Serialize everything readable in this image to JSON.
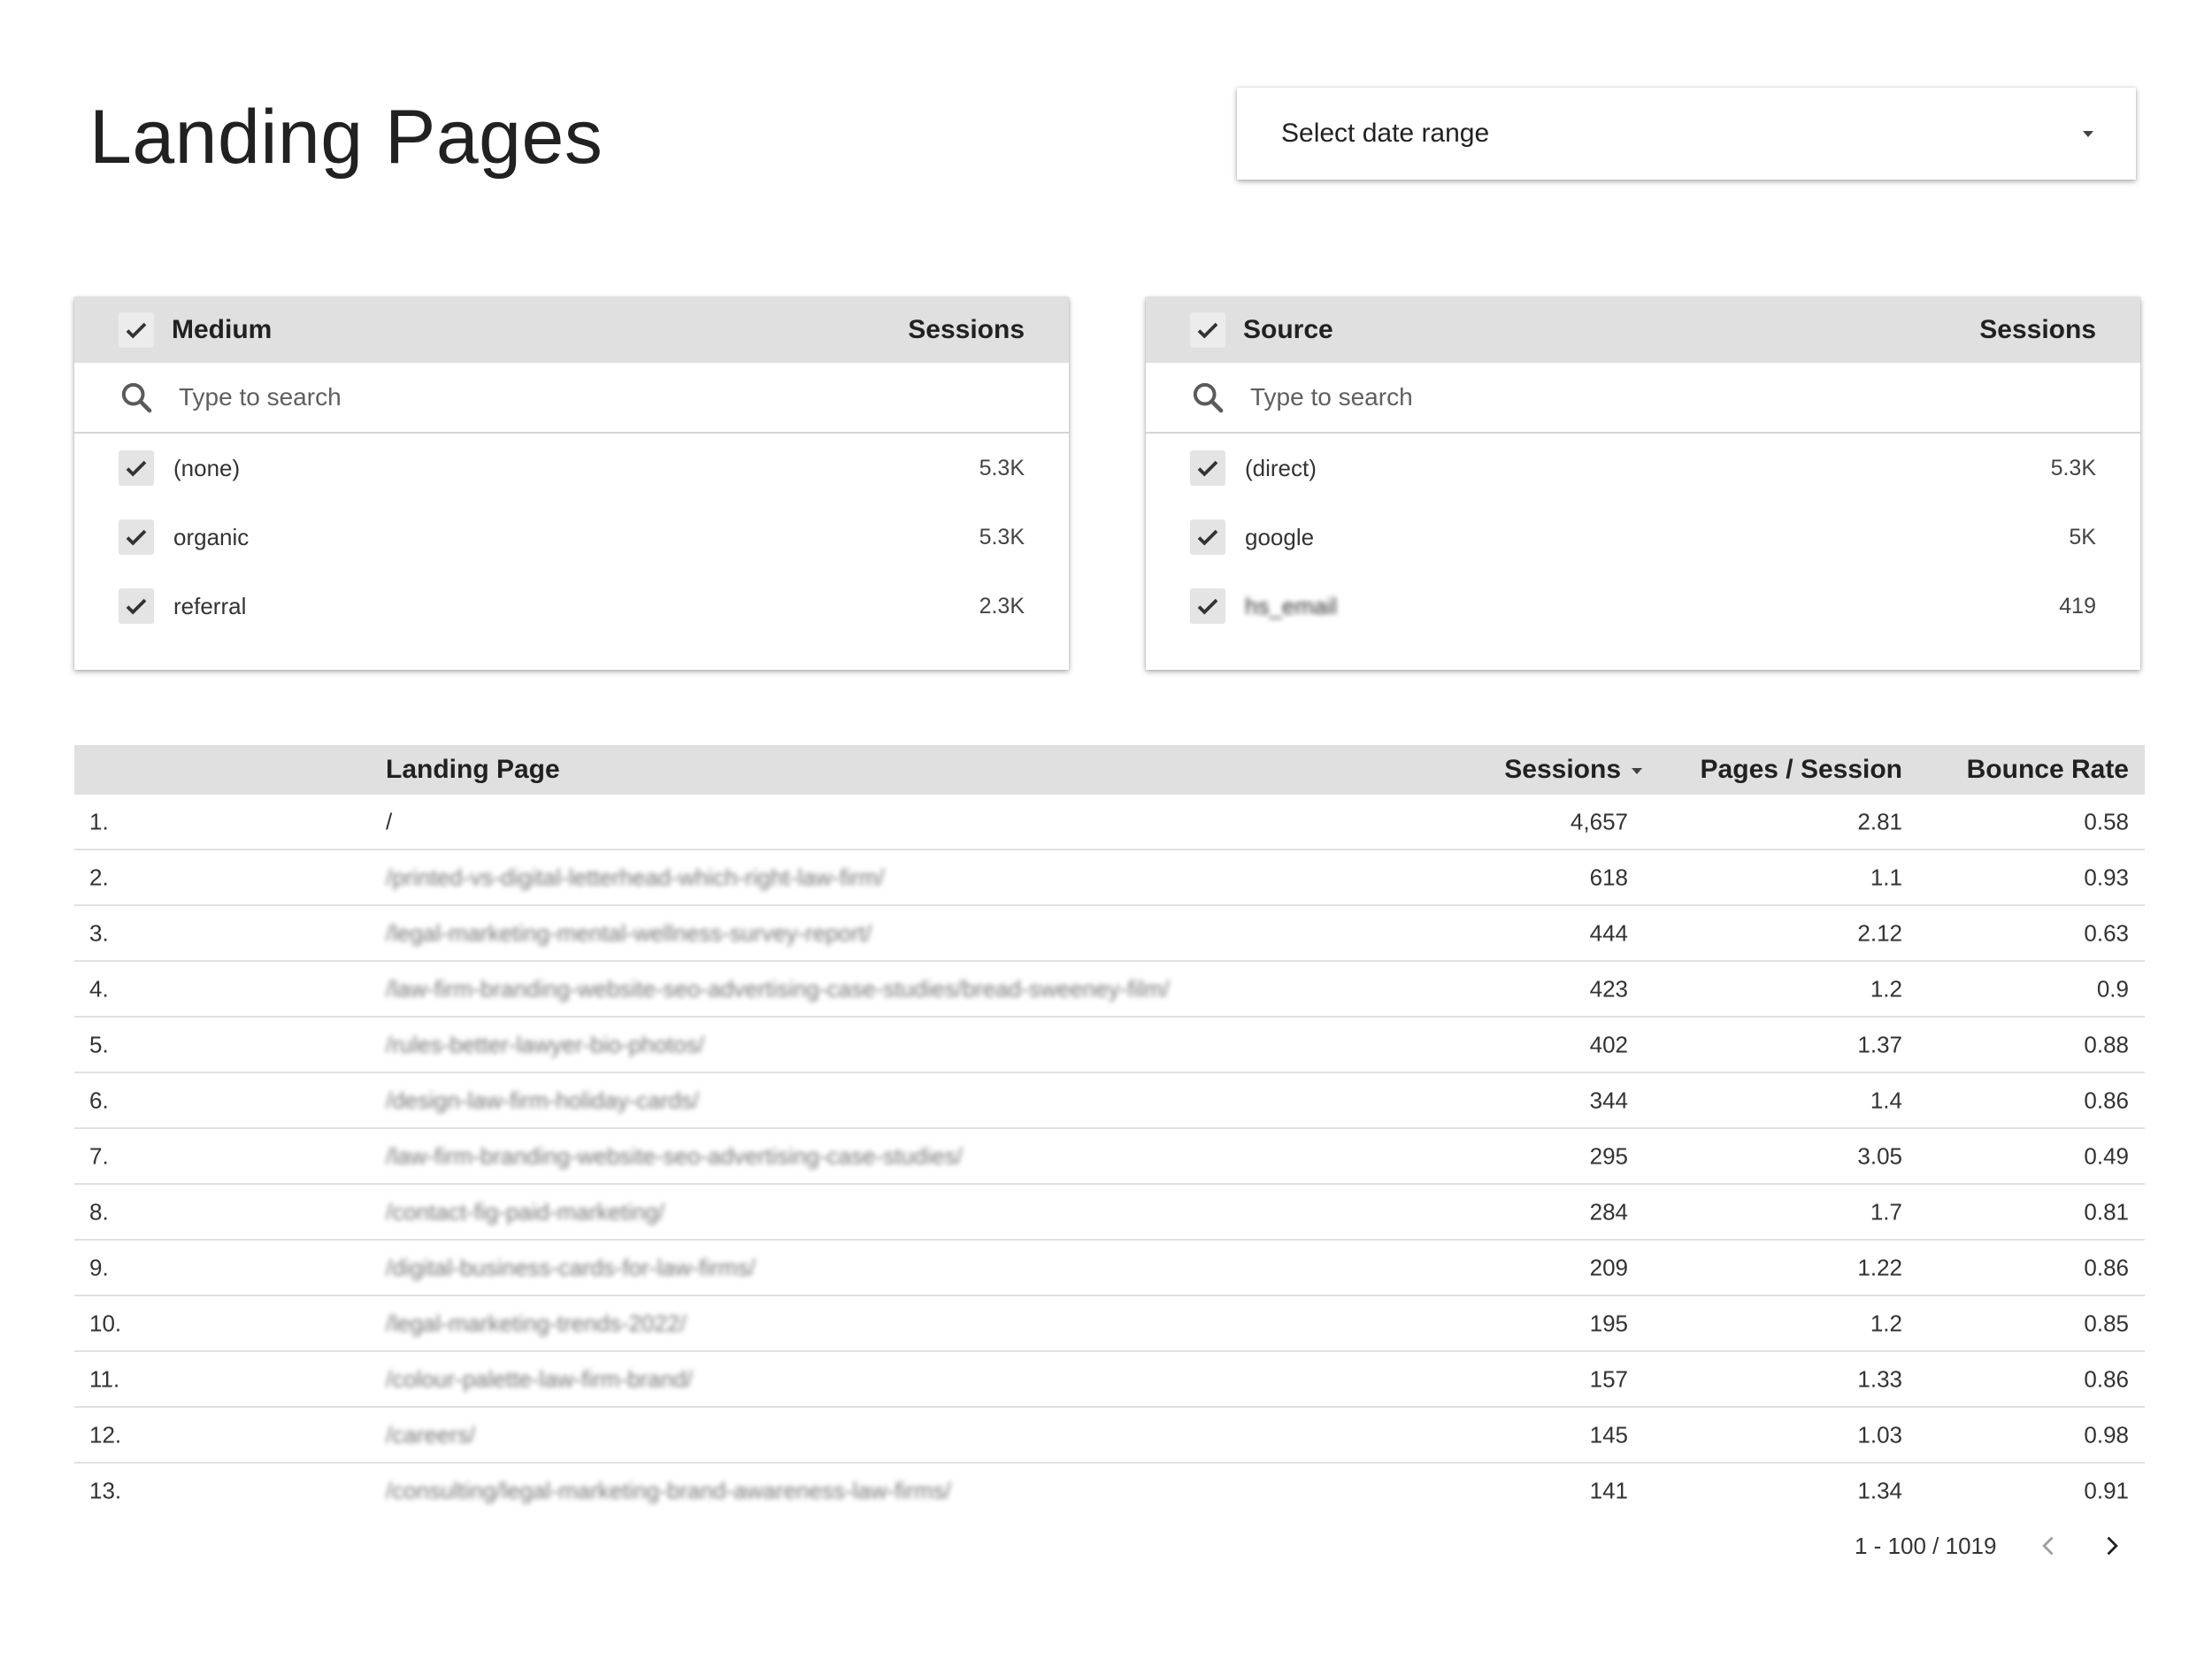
{
  "page": {
    "title": "Landing Pages"
  },
  "date_range": {
    "label": "Select date range"
  },
  "medium_filter": {
    "title": "Medium",
    "metric": "Sessions",
    "search_placeholder": "Type to search",
    "items": [
      {
        "name": "(none)",
        "value": "5.3K"
      },
      {
        "name": "organic",
        "value": "5.3K"
      },
      {
        "name": "referral",
        "value": "2.3K"
      }
    ]
  },
  "source_filter": {
    "title": "Source",
    "metric": "Sessions",
    "search_placeholder": "Type to search",
    "items": [
      {
        "name": "(direct)",
        "value": "5.3K"
      },
      {
        "name": "google",
        "value": "5K"
      },
      {
        "name": "hs_email",
        "value": "419"
      }
    ]
  },
  "table": {
    "columns": [
      "Landing Page",
      "Sessions",
      "Pages / Session",
      "Bounce Rate"
    ],
    "rows": [
      {
        "idx": "1.",
        "page": "/",
        "sessions": "4,657",
        "pps": "2.81",
        "bounce": "0.58"
      },
      {
        "idx": "2.",
        "page": "/printed-vs-digital-letterhead-which-right-law-firm/",
        "sessions": "618",
        "pps": "1.1",
        "bounce": "0.93"
      },
      {
        "idx": "3.",
        "page": "/legal-marketing-mental-wellness-survey-report/",
        "sessions": "444",
        "pps": "2.12",
        "bounce": "0.63"
      },
      {
        "idx": "4.",
        "page": "/law-firm-branding-website-seo-advertising-case-studies/bread-sweeney-film/",
        "sessions": "423",
        "pps": "1.2",
        "bounce": "0.9"
      },
      {
        "idx": "5.",
        "page": "/rules-better-lawyer-bio-photos/",
        "sessions": "402",
        "pps": "1.37",
        "bounce": "0.88"
      },
      {
        "idx": "6.",
        "page": "/design-law-firm-holiday-cards/",
        "sessions": "344",
        "pps": "1.4",
        "bounce": "0.86"
      },
      {
        "idx": "7.",
        "page": "/law-firm-branding-website-seo-advertising-case-studies/",
        "sessions": "295",
        "pps": "3.05",
        "bounce": "0.49"
      },
      {
        "idx": "8.",
        "page": "/contact-fig-paid-marketing/",
        "sessions": "284",
        "pps": "1.7",
        "bounce": "0.81"
      },
      {
        "idx": "9.",
        "page": "/digital-business-cards-for-law-firms/",
        "sessions": "209",
        "pps": "1.22",
        "bounce": "0.86"
      },
      {
        "idx": "10.",
        "page": "/legal-marketing-trends-2022/",
        "sessions": "195",
        "pps": "1.2",
        "bounce": "0.85"
      },
      {
        "idx": "11.",
        "page": "/colour-palette-law-firm-brand/",
        "sessions": "157",
        "pps": "1.33",
        "bounce": "0.86"
      },
      {
        "idx": "12.",
        "page": "/careers/",
        "sessions": "145",
        "pps": "1.03",
        "bounce": "0.98"
      },
      {
        "idx": "13.",
        "page": "/consulting/legal-marketing-brand-awareness-law-firms/",
        "sessions": "141",
        "pps": "1.34",
        "bounce": "0.91"
      }
    ]
  },
  "pager": {
    "label": "1 - 100 / 1019"
  }
}
